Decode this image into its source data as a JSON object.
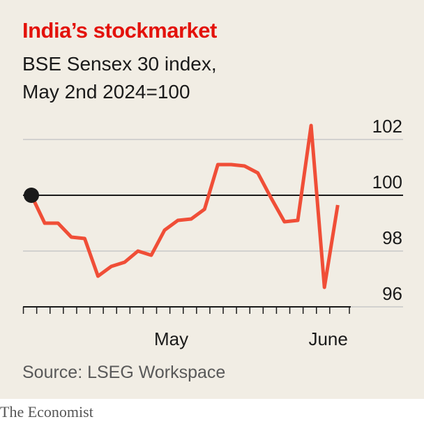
{
  "title": "India’s stockmarket",
  "subtitle_line1": "BSE Sensex 30 index,",
  "subtitle_line2": "May 2nd 2024=100",
  "source": "Source: LSEG Workspace",
  "brand": "The Economist",
  "colors": {
    "line": "#f04e37",
    "title": "#e3120b",
    "background": "#f1ede4",
    "grid": "#c8c8c8",
    "baseline": "#1a1a1a"
  },
  "chart_data": {
    "type": "line",
    "title": "India’s stockmarket",
    "subtitle": "BSE Sensex 30 index, May 2nd 2024=100",
    "ylim": [
      95.5,
      103.5
    ],
    "yticks": [
      96,
      98,
      100,
      102
    ],
    "reference_line": 100,
    "grid": true,
    "xticklabels": [
      {
        "label": "May",
        "index": 10.5
      },
      {
        "label": "June",
        "index": 21.5
      }
    ],
    "start_marker": true,
    "series": [
      {
        "values": [
          100.0,
          99.0,
          99.0,
          98.5,
          98.45,
          97.1,
          97.45,
          97.6,
          98.0,
          97.85,
          98.75,
          99.1,
          99.15,
          99.5,
          101.1,
          101.1,
          101.05,
          100.8,
          99.9,
          99.05,
          99.1,
          102.5,
          96.7,
          99.65
        ]
      }
    ]
  }
}
